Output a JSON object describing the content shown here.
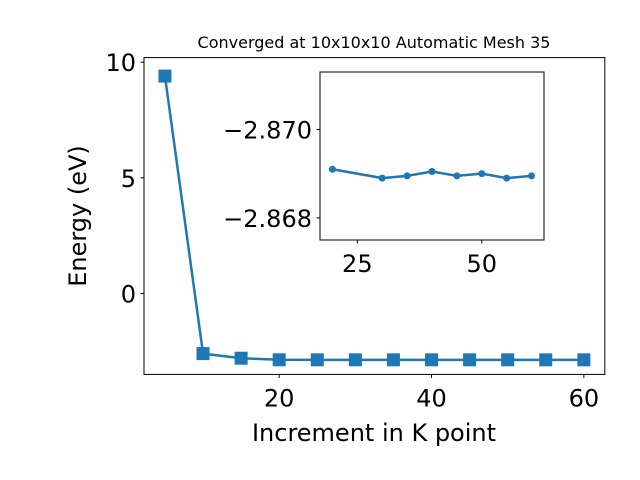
{
  "chart_data": [
    {
      "type": "line",
      "title": "Converged at 10x10x10 Automatic Mesh 35",
      "xlabel": "Increment in K point",
      "ylabel": "Energy (eV)",
      "xlim": [
        2.25,
        62.75
      ],
      "ylim": [
        -3.5,
        10.2
      ],
      "x_ticks": [
        20,
        40,
        60
      ],
      "y_ticks": [
        0,
        5,
        10
      ],
      "x_tick_labels": [
        "20",
        "40",
        "60"
      ],
      "y_tick_labels": [
        "0",
        "5",
        "10"
      ],
      "marker": "square",
      "color": "#1f77b4",
      "grid": false,
      "series": [
        {
          "x": [
            5,
            10,
            15,
            20,
            25,
            30,
            35,
            40,
            45,
            50,
            55,
            60
          ],
          "y": [
            9.4,
            -2.6,
            -2.8,
            -2.869,
            -2.8695,
            -2.8693,
            -2.8694,
            -2.8693,
            -2.8694,
            -2.8694,
            -2.8694,
            -2.8694
          ]
        }
      ]
    },
    {
      "type": "line",
      "title": "",
      "xlabel": "",
      "ylabel": "",
      "xlim": [
        17.5,
        62.5
      ],
      "ylim": [
        -2.8675,
        -2.8713
      ],
      "x_ticks": [
        25,
        50
      ],
      "y_ticks": [
        -2.87,
        -2.868
      ],
      "x_tick_labels": [
        "25",
        "50"
      ],
      "y_tick_labels": [
        "−2.870",
        "−2.868"
      ],
      "marker": "circle",
      "color": "#1f77b4",
      "grid": false,
      "series": [
        {
          "x": [
            20,
            30,
            35,
            40,
            45,
            50,
            55,
            60
          ],
          "y": [
            -2.8691,
            -2.8689,
            -2.86895,
            -2.86905,
            -2.86895,
            -2.869,
            -2.8689,
            -2.86895
          ]
        }
      ]
    }
  ]
}
